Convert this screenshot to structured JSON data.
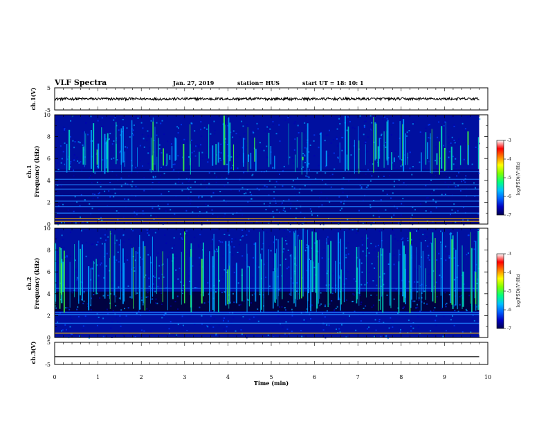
{
  "header": {
    "title": "VLF Spectra",
    "date": "Jan. 27, 2019",
    "station": "station= HUS",
    "start": "start  UT  =   18: 10: 1"
  },
  "chart_data": [
    {
      "type": "line",
      "panel": "waveform-ch1",
      "ylabel": "ch.1(V)",
      "ylim": [
        -5,
        5
      ],
      "y_ticks": [
        "5",
        "-5"
      ],
      "series": [
        {
          "values_level": 0.0,
          "noise_amplitude": 0.6
        }
      ]
    },
    {
      "type": "heatmap",
      "panel": "spectrogram-ch1",
      "ylabel_line1": "ch.1",
      "ylabel_line2": "Frequency (kHz)",
      "ylim": [
        0,
        10
      ],
      "y_ticks": [
        "0",
        "2",
        "4",
        "6",
        "8",
        "10"
      ],
      "horizontal_lines_khz": [
        0.25,
        0.5,
        1.0,
        1.6,
        2.1,
        2.6,
        3.2,
        3.6,
        4.1,
        4.8
      ],
      "colorbar": {
        "label": "log(PSD)(V²/Hz)",
        "range": [
          -7,
          -3
        ],
        "ticks": [
          "-3",
          "-4",
          "-5",
          "-6",
          "-7"
        ]
      }
    },
    {
      "type": "heatmap",
      "panel": "spectrogram-ch2",
      "ylabel_line1": "ch.2",
      "ylabel_line2": "Frequency (kHz)",
      "ylim": [
        0,
        10
      ],
      "y_ticks": [
        "0",
        "2",
        "4",
        "6",
        "8",
        "10"
      ],
      "horizontal_lines_khz": [
        0.4,
        1.3,
        2.1,
        2.3,
        4.5
      ],
      "colorbar": {
        "label": "log(PSD)(V²/Hz)",
        "range": [
          -7,
          -3
        ],
        "ticks": [
          "-3",
          "-4",
          "-5",
          "-6",
          "-7"
        ]
      }
    },
    {
      "type": "line",
      "panel": "waveform-ch3",
      "ylabel": "ch.3(V)",
      "ylim": [
        -5,
        5
      ],
      "y_ticks": [
        "5",
        "-5"
      ],
      "series": [
        {
          "values_level": -1.5,
          "noise_amplitude": 0.0
        }
      ]
    }
  ],
  "x_axis": {
    "label": "Time (min)",
    "range": [
      0,
      10
    ],
    "data_end": 9.8,
    "ticks": [
      "0",
      "1",
      "2",
      "3",
      "4",
      "5",
      "6",
      "7",
      "8",
      "9",
      "10"
    ]
  },
  "colors": {
    "colormap": [
      "#00004a",
      "#0000b0",
      "#0040ff",
      "#00a0ff",
      "#00e0c0",
      "#40ff40",
      "#ffff00",
      "#ff8000",
      "#ff0000",
      "#ffffff"
    ],
    "background_spectro": "#000020"
  }
}
